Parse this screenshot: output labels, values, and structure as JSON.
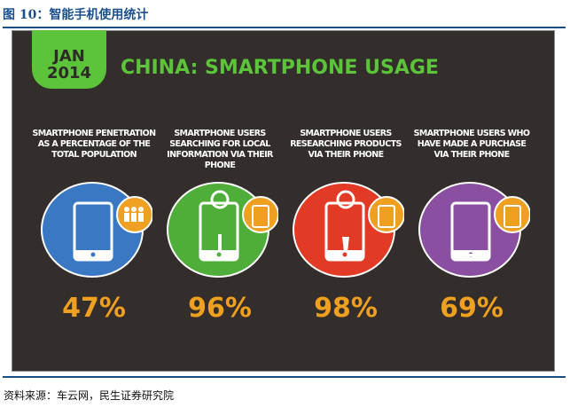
{
  "caption": "图 10：智能手机使用统计",
  "infographic": {
    "date_tab": [
      "JAN",
      "2014"
    ],
    "title": "CHINA: SMARTPHONE USAGE",
    "stats": [
      {
        "label": "SMARTPHONE PENETRATION AS A PERCENTAGE OF THE TOTAL POPULATION",
        "value": "47%",
        "color": "#3a78c4",
        "icon": "people-icon",
        "inner_icon": "smartphone-icon"
      },
      {
        "label": "SMARTPHONE USERS SEARCHING FOR LOCAL INFORMATION VIA THEIR PHONE",
        "value": "96%",
        "color": "#4fae3a",
        "icon": "smartphone-icon",
        "inner_icon": "location-search-icon"
      },
      {
        "label": "SMARTPHONE USERS RESEARCHING PRODUCTS VIA THEIR PHONE",
        "value": "98%",
        "color": "#e23a25",
        "icon": "smartphone-icon",
        "inner_icon": "product-search-icon"
      },
      {
        "label": "SMARTPHONE USERS WHO HAVE MADE A PURCHASE VIA THEIR PHONE",
        "value": "69%",
        "color": "#8a4fa0",
        "icon": "smartphone-icon",
        "inner_icon": "shopping-bag-icon"
      }
    ],
    "accent": "#f0a020",
    "brand_green": "#5cc43a"
  },
  "source": "资料来源：车云网，民生证券研究院"
}
